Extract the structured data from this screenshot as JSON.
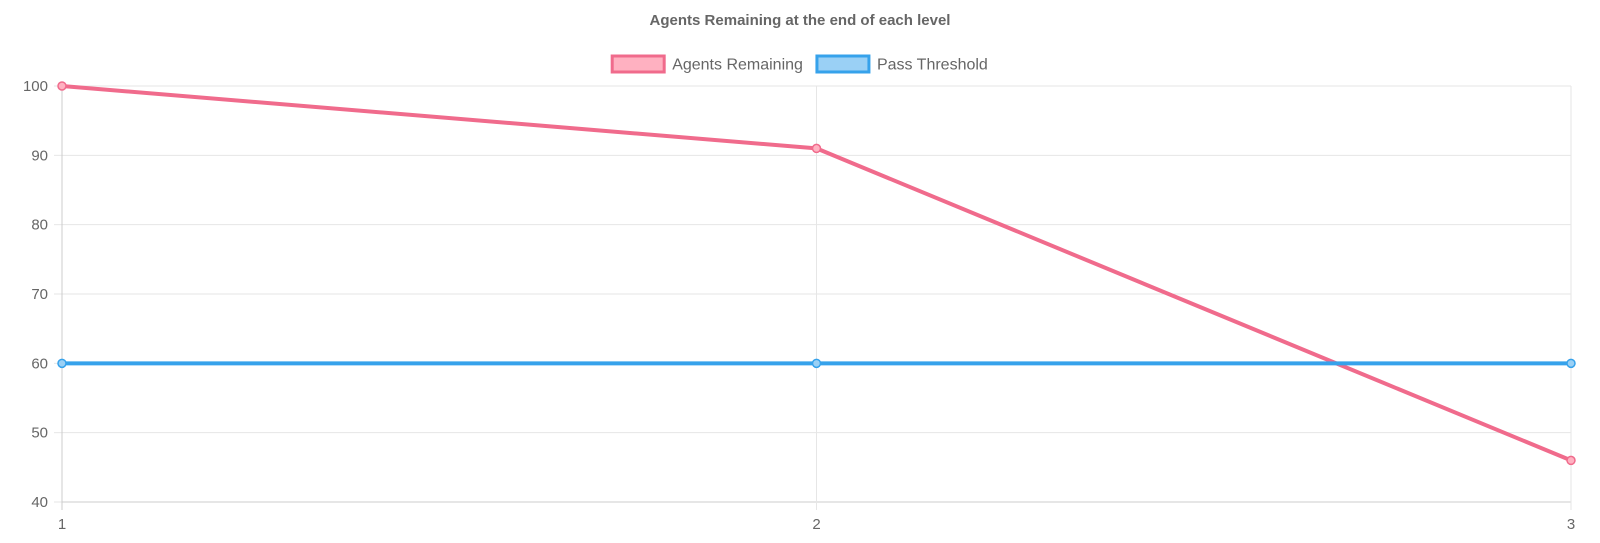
{
  "chart_data": {
    "type": "line",
    "title": "Agents Remaining at the end of each level",
    "xlabel": "",
    "ylabel": "",
    "categories": [
      "1",
      "2",
      "3"
    ],
    "ylim": [
      40,
      100
    ],
    "y_ticks": [
      40,
      50,
      60,
      70,
      80,
      90,
      100
    ],
    "grid": true,
    "legend_position": "top-center",
    "series": [
      {
        "name": "Agents Remaining",
        "values": [
          100,
          91,
          46
        ],
        "color": "#f06b8c",
        "fill": "#ffb1c1"
      },
      {
        "name": "Pass Threshold",
        "values": [
          60,
          60,
          60
        ],
        "color": "#36a2eb",
        "fill": "#9ad0f5"
      }
    ]
  }
}
